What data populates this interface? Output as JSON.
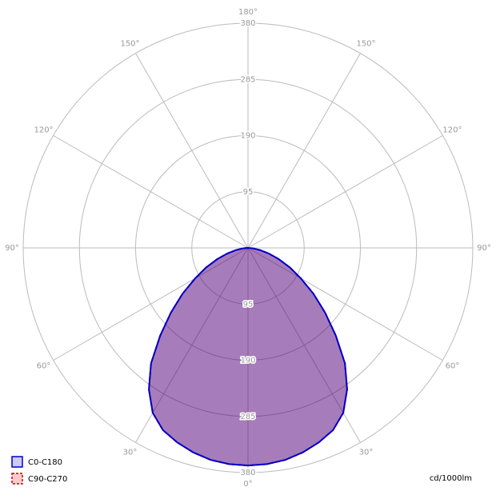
{
  "chart_data": {
    "type": "polar",
    "unit_label": "cd/1000lm",
    "rlim": [
      0,
      380
    ],
    "rticks": [
      95,
      190,
      285,
      380
    ],
    "angle_ticks": [
      {
        "value": 0,
        "label": "0°"
      },
      {
        "value": 30,
        "label": "30°"
      },
      {
        "value": 60,
        "label": "60°"
      },
      {
        "value": 90,
        "label": "90°"
      },
      {
        "value": 120,
        "label": "120°"
      },
      {
        "value": 150,
        "label": "150°"
      },
      {
        "value": 180,
        "label": "180°"
      }
    ],
    "grid": true,
    "legend": "bottom-left",
    "angles": [
      -90,
      -85,
      -80,
      -75,
      -70,
      -65,
      -60,
      -55,
      -50,
      -45,
      -40,
      -35,
      -30,
      -25,
      -20,
      -15,
      -10,
      -5,
      0,
      5,
      10,
      15,
      20,
      25,
      30,
      35,
      40,
      45,
      50,
      55,
      60,
      65,
      70,
      75,
      80,
      85,
      90
    ],
    "series": [
      {
        "name": "C0-C180",
        "color": "#0000cc",
        "dashed": false,
        "values": [
          0,
          8,
          20,
          36,
          55,
          78,
          103,
          135,
          170,
          210,
          255,
          292,
          322,
          340,
          350,
          358,
          364,
          367,
          368,
          367,
          364,
          358,
          350,
          340,
          322,
          292,
          255,
          210,
          170,
          135,
          103,
          78,
          55,
          36,
          20,
          8,
          0
        ]
      },
      {
        "name": "C90-C270",
        "color": "#cc0000",
        "dashed": true,
        "values": [
          0,
          8,
          20,
          36,
          55,
          78,
          103,
          135,
          170,
          210,
          255,
          292,
          322,
          340,
          350,
          358,
          364,
          367,
          368,
          367,
          364,
          358,
          350,
          340,
          322,
          292,
          255,
          210,
          170,
          135,
          103,
          78,
          55,
          36,
          20,
          8,
          0
        ]
      }
    ]
  }
}
